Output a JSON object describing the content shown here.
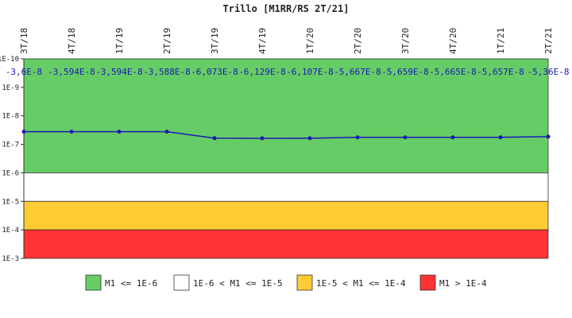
{
  "chart_data": {
    "type": "line",
    "title": "Trillo [M1RR/RS 2T/21]",
    "x": [
      "3T/18",
      "4T/18",
      "1T/19",
      "2T/19",
      "3T/19",
      "4T/19",
      "1T/20",
      "2T/20",
      "3T/20",
      "4T/20",
      "1T/21",
      "2T/21"
    ],
    "y": [
      -3.6e-08,
      -3.594e-08,
      -3.594e-08,
      -3.588e-08,
      -6.073e-08,
      -6.129e-08,
      -6.107e-08,
      -5.667e-08,
      -5.659e-08,
      -5.665e-08,
      -5.657e-08,
      -5.36e-08
    ],
    "data_labels": [
      "-3,6E-8",
      "-3,594E-8",
      "-3,594E-8",
      "-3,588E-8",
      "-6,073E-8",
      "-6,129E-8",
      "-6,107E-8",
      "-5,667E-8",
      "-5,659E-8",
      "-5,665E-8",
      "-5,657E-8",
      "-5,36E-8"
    ],
    "y_scale": "log",
    "ylim": [
      1e-10,
      0.001
    ],
    "y_ticks": [
      {
        "value": 1e-10,
        "label": "1E-10"
      },
      {
        "value": 1e-09,
        "label": "1E-9"
      },
      {
        "value": 1e-08,
        "label": "1E-8"
      },
      {
        "value": 1e-07,
        "label": "1E-7"
      },
      {
        "value": 1e-06,
        "label": "1E-6"
      },
      {
        "value": 1e-05,
        "label": "1E-5"
      },
      {
        "value": 0.0001,
        "label": "1E-4"
      },
      {
        "value": 0.001,
        "label": "1E-3"
      }
    ],
    "x_label_position": "top",
    "grid": false,
    "line_color": "#1a1ab4",
    "bands": [
      {
        "from": 1e-10,
        "to": 1e-06,
        "color": "#66cc66",
        "label": "M1 <= 1E-6"
      },
      {
        "from": 1e-06,
        "to": 1e-05,
        "color": "#ffffff",
        "label": "1E-6 < M1 <= 1E-5"
      },
      {
        "from": 1e-05,
        "to": 0.0001,
        "color": "#ffcc33",
        "label": "1E-5 < M1 <= 1E-4"
      },
      {
        "from": 0.0001,
        "to": 0.001,
        "color": "#ff3333",
        "label": "M1 > 1E-4"
      }
    ],
    "legend_placement": "bottom"
  }
}
